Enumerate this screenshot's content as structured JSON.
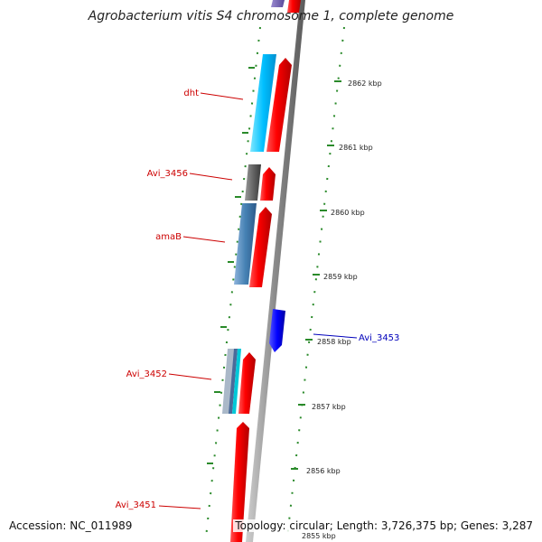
{
  "title": "Agrobacterium vitis S4 chromosome 1, complete genome",
  "accession": "Accession: NC_011989",
  "summary": "Topology: circular; Length: 3,726,375 bp; Genes: 3,287",
  "colors": {
    "backbone": "#9a9a9a",
    "tick": "#2a8a2a",
    "forward_label": "#cc0000",
    "reverse_label": "#0000bb"
  },
  "scale_labels": [
    "2862 kbp",
    "2861 kbp",
    "2860 kbp",
    "2859 kbp",
    "2858 kbp",
    "2857 kbp",
    "2856 kbp",
    "2855 kbp"
  ],
  "gene_labels": [
    {
      "name": "dht",
      "color": "#cc0000"
    },
    {
      "name": "Avi_3456",
      "color": "#cc0000"
    },
    {
      "name": "amaB",
      "color": "#cc0000"
    },
    {
      "name": "Avi_3453",
      "color": "#0000bb"
    },
    {
      "name": "Avi_3452",
      "color": "#cc0000"
    },
    {
      "name": "Avi_3451",
      "color": "#cc0000"
    }
  ]
}
